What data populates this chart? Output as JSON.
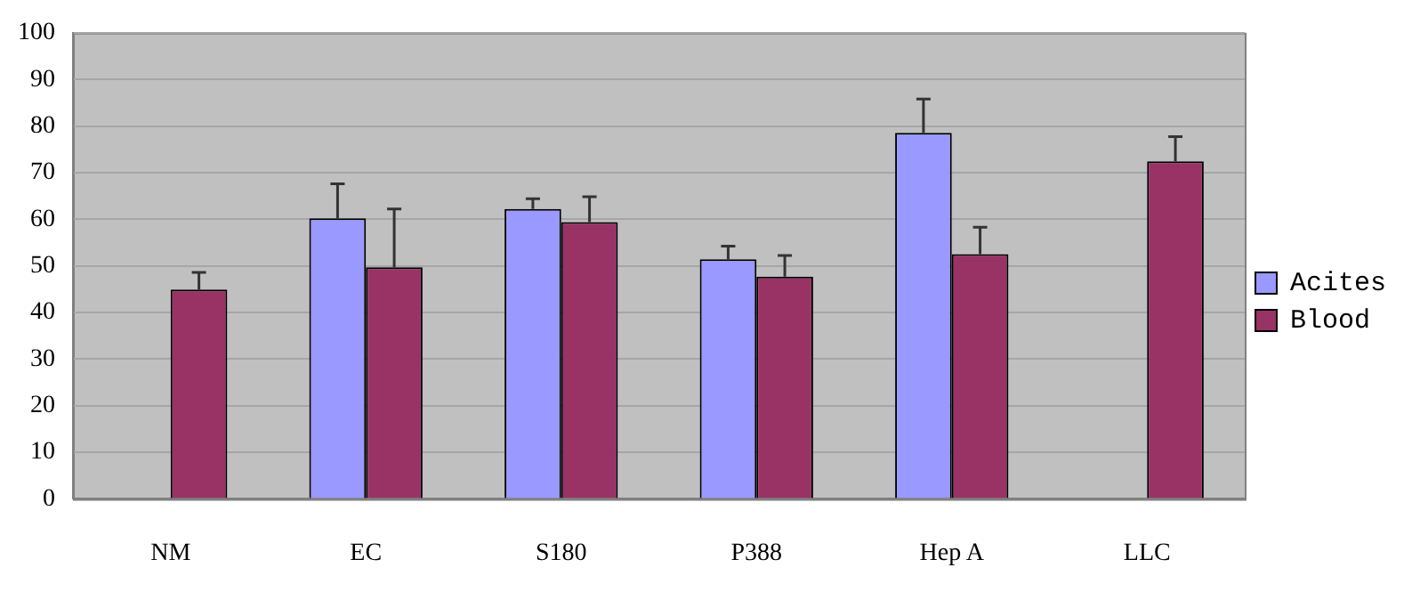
{
  "chart_data": {
    "type": "bar",
    "categories": [
      "NM",
      "EC",
      "S180",
      "P388",
      "Hep A",
      "LLC"
    ],
    "series": [
      {
        "name": "Acites",
        "color": "#9999ff",
        "values": [
          null,
          60.2,
          62.2,
          51.4,
          78.5,
          null
        ],
        "errors": [
          null,
          [
            60.2,
            67.6
          ],
          [
            62.2,
            64.4
          ],
          [
            51.4,
            54.2
          ],
          [
            78.5,
            85.8
          ],
          null
        ]
      },
      {
        "name": "Blood",
        "color": "#993366",
        "values": [
          44.9,
          49.7,
          59.4,
          47.7,
          52.5,
          72.4
        ],
        "errors": [
          [
            44.9,
            48.6
          ],
          [
            49.7,
            62.2
          ],
          [
            59.4,
            64.8
          ],
          [
            47.7,
            52.2
          ],
          [
            52.5,
            58.3
          ],
          [
            72.4,
            77.7
          ]
        ]
      }
    ],
    "ylim": [
      0,
      100
    ],
    "yticks": [
      0,
      10,
      20,
      30,
      40,
      50,
      60,
      70,
      80,
      90,
      100
    ],
    "grid": "y",
    "legend": "right"
  }
}
